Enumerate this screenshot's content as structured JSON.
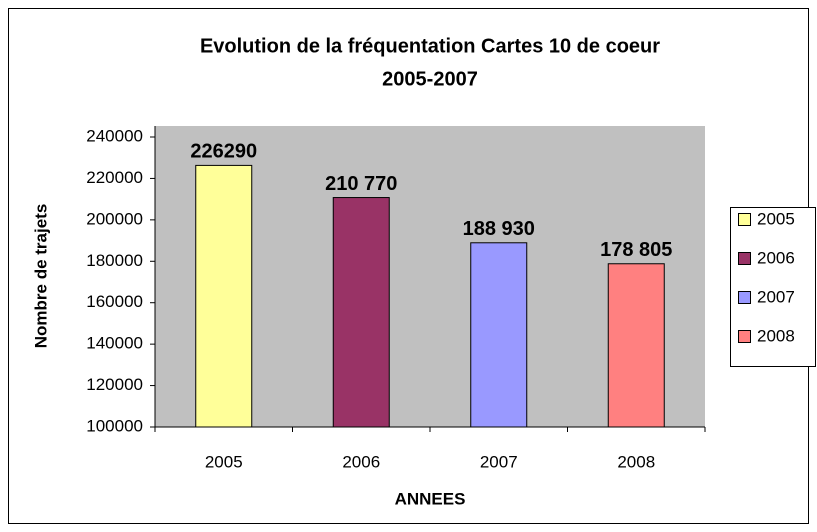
{
  "chart_data": {
    "type": "bar",
    "title": "Evolution de la fréquentation Cartes 10 de coeur",
    "subtitle": "2005-2007",
    "x_label": "ANNEES",
    "y_label": "Nombre de trajets",
    "categories": [
      "2005",
      "2006",
      "2007",
      "2008"
    ],
    "values": [
      226290,
      210770,
      188930,
      178805
    ],
    "value_labels": [
      "226290",
      "210 770",
      "188 930",
      "178 805"
    ],
    "colors": [
      "#ffff99",
      "#993366",
      "#9999ff",
      "#ff8080"
    ],
    "ylim": [
      100000,
      240000
    ],
    "yticks": [
      100000,
      120000,
      140000,
      160000,
      180000,
      200000,
      220000,
      240000
    ],
    "grid": false,
    "legend": "right"
  }
}
